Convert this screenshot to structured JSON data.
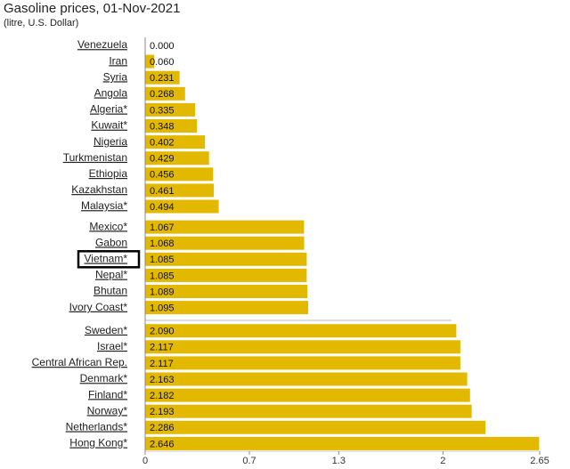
{
  "chart_data": {
    "type": "bar",
    "orientation": "horizontal",
    "title": "Gasoline prices, 01-Nov-2021",
    "subtitle": "(litre, U.S. Dollar)",
    "categories": [
      "Venezuela",
      "Iran",
      "Syria",
      "Angola",
      "Algeria*",
      "Kuwait*",
      "Nigeria",
      "Turkmenistan",
      "Ethiopia",
      "Kazakhstan",
      "Malaysia*",
      "Mexico*",
      "Gabon",
      "Vietnam*",
      "Nepal*",
      "Bhutan",
      "Ivory Coast*",
      "Sweden*",
      "Israel*",
      "Central African Rep.",
      "Denmark*",
      "Finland*",
      "Norway*",
      "Netherlands*",
      "Hong Kong*"
    ],
    "values": [
      0,
      0.06,
      0.231,
      0.268,
      0.335,
      0.348,
      0.402,
      0.429,
      0.456,
      0.461,
      0.494,
      1.067,
      1.068,
      1.085,
      1.085,
      1.089,
      1.095,
      2.09,
      2.117,
      2.117,
      2.163,
      2.182,
      2.193,
      2.286,
      2.646
    ],
    "value_labels": [
      "0.000",
      "0.060",
      "0.231",
      "0.268",
      "0.335",
      "0.348",
      "0.402",
      "0.429",
      "0.456",
      "0.461",
      "0.494",
      "1.067",
      "1.068",
      "1.085",
      "1.085",
      "1.089",
      "1.095",
      "2.090",
      "2.117",
      "2.117",
      "2.163",
      "2.182",
      "2.193",
      "2.286",
      "2.646"
    ],
    "color": "#e3b900",
    "xlim": [
      0,
      2.65
    ],
    "xticks": [
      0,
      0.7,
      1.3,
      2,
      2.65
    ]
  }
}
